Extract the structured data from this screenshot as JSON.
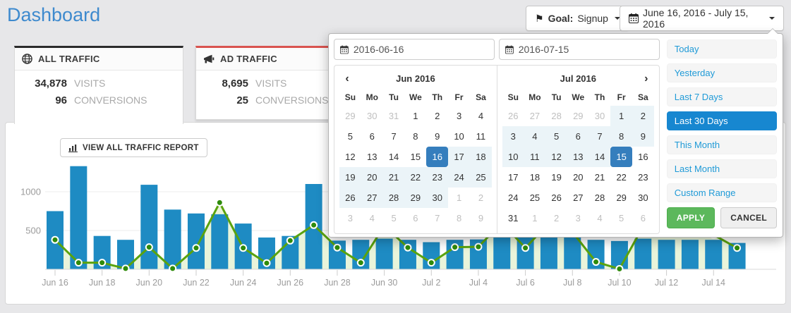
{
  "page": {
    "title": "Dashboard"
  },
  "header": {
    "goal_button": {
      "icon_glyph": "⚑",
      "label_prefix": "Goal:",
      "value": "Signup"
    },
    "date_range_button": {
      "label": "June 16, 2016 - July 15, 2016"
    }
  },
  "cards": [
    {
      "title": "ALL TRAFFIC",
      "icon": "globe-icon",
      "accent": "#2b2b2b",
      "stats": [
        {
          "value": "34,878",
          "label": "VISITS"
        },
        {
          "value": "96",
          "label": "CONVERSIONS"
        }
      ]
    },
    {
      "title": "AD TRAFFIC",
      "icon": "megaphone-icon",
      "accent": "#d9534f",
      "stats": [
        {
          "value": "8,695",
          "label": "VISITS"
        },
        {
          "value": "25",
          "label": "CONVERSIONS"
        }
      ]
    }
  ],
  "report": {
    "view_button": "VIEW ALL TRAFFIC REPORT"
  },
  "chart_data": {
    "type": "bar",
    "x": [
      "Jun 16",
      "Jun 17",
      "Jun 18",
      "Jun 19",
      "Jun 20",
      "Jun 21",
      "Jun 22",
      "Jun 23",
      "Jun 24",
      "Jun 25",
      "Jun 26",
      "Jun 27",
      "Jun 28",
      "Jun 29",
      "Jun 30",
      "Jul 1",
      "Jul 2",
      "Jul 3",
      "Jul 4",
      "Jul 5",
      "Jul 6",
      "Jul 7",
      "Jul 8",
      "Jul 9",
      "Jul 10",
      "Jul 11",
      "Jul 12",
      "Jul 13",
      "Jul 14",
      "Jul 15"
    ],
    "series": [
      {
        "name": "visits",
        "type": "bar",
        "color": "#1e8bc3",
        "values": [
          750,
          1330,
          430,
          380,
          1090,
          770,
          720,
          710,
          590,
          410,
          430,
          1100,
          370,
          380,
          395,
          380,
          350,
          380,
          385,
          600,
          550,
          700,
          480,
          380,
          365,
          395,
          380,
          380,
          380,
          340
        ]
      },
      {
        "name": "conversions",
        "type": "line",
        "color": "#5aa30e",
        "values": [
          380,
          85,
          85,
          10,
          285,
          10,
          275,
          860,
          275,
          80,
          370,
          570,
          280,
          85,
          560,
          280,
          85,
          285,
          290,
          600,
          275,
          600,
          480,
          95,
          5,
          550,
          500,
          500,
          445,
          275
        ]
      }
    ],
    "title": "",
    "xlabel": "",
    "ylabel": "",
    "ylim": [
      0,
      1600
    ],
    "yticks": [
      500,
      1000
    ],
    "xtick_every": 2,
    "grid": true,
    "legend_position": "none",
    "dot_color": "#2f8b0b",
    "area_color": "#e9f4da",
    "axis_color": "#d9d9d9",
    "label_color": "#9b9b9b"
  },
  "datepicker": {
    "start_input": "2016-06-16",
    "end_input": "2016-07-15",
    "nav": {
      "prev": "‹",
      "next": "›"
    },
    "weekdays": [
      "Su",
      "Mo",
      "Tu",
      "We",
      "Th",
      "Fr",
      "Sa"
    ],
    "calendars": [
      {
        "month": "Jun 2016",
        "weeks": [
          [
            "29:o",
            "30:o",
            "31:o",
            "1",
            "2",
            "3",
            "4"
          ],
          [
            "5",
            "6",
            "7",
            "8",
            "9",
            "10",
            "11"
          ],
          [
            "12",
            "13",
            "14",
            "15",
            "16:s",
            "17:i",
            "18:i"
          ],
          [
            "19:i",
            "20:i",
            "21:i",
            "22:i",
            "23:i",
            "24:i",
            "25:i"
          ],
          [
            "26:i",
            "27:i",
            "28:i",
            "29:i",
            "30:i",
            "1:o",
            "2:o"
          ],
          [
            "3:o",
            "4:o",
            "5:o",
            "6:o",
            "7:o",
            "8:o",
            "9:o"
          ]
        ]
      },
      {
        "month": "Jul 2016",
        "weeks": [
          [
            "26:o",
            "27:o",
            "28:o",
            "29:o",
            "30:o",
            "1:i",
            "2:i"
          ],
          [
            "3:i",
            "4:i",
            "5:i",
            "6:i",
            "7:i",
            "8:i",
            "9:i"
          ],
          [
            "10:i",
            "11:i",
            "12:i",
            "13:i",
            "14:i",
            "15:s",
            "16"
          ],
          [
            "17",
            "18",
            "19",
            "20",
            "21",
            "22",
            "23"
          ],
          [
            "24",
            "25",
            "26",
            "27",
            "28",
            "29",
            "30"
          ],
          [
            "31",
            "1:o",
            "2:o",
            "3:o",
            "4:o",
            "5:o",
            "6:o"
          ]
        ]
      }
    ],
    "presets": [
      "Today",
      "Yesterday",
      "Last 7 Days",
      "Last 30 Days",
      "This Month",
      "Last Month",
      "Custom Range"
    ],
    "active_preset": "Last 30 Days",
    "apply_label": "APPLY",
    "cancel_label": "CANCEL"
  }
}
